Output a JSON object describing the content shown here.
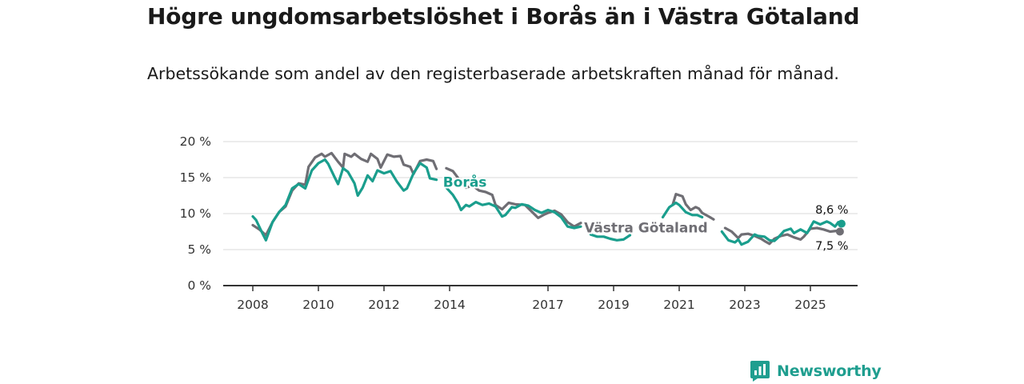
{
  "title": "Högre ungdomsarbetslöshet i Borås än i Västra Götaland",
  "subtitle": "Arbetssökande som andel av den registerbaserade arbetskraften månad för månad.",
  "brand": {
    "name": "Newsworthy",
    "color": "#1f9e8f"
  },
  "chart_data": {
    "type": "line",
    "title": "Högre ungdomsarbetslöshet i Borås än i Västra Götaland",
    "subtitle": "Arbetssökande som andel av den registerbaserade arbetskraften månad för månad.",
    "xlabel": "",
    "ylabel": "",
    "xlim": [
      2007.8,
      2026.5
    ],
    "ylim": [
      0,
      20
    ],
    "yticks": [
      0,
      5,
      10,
      15,
      20
    ],
    "ytick_labels": [
      "0 %",
      "5 %",
      "10 %",
      "15 %",
      "20 %"
    ],
    "xticks": [
      2008,
      2010,
      2012,
      2014,
      2017,
      2019,
      2021,
      2023,
      2025
    ],
    "xtick_labels": [
      "2008",
      "2010",
      "2012",
      "2014",
      "2017",
      "2019",
      "2021",
      "2023",
      "2025"
    ],
    "grid": true,
    "series": [
      {
        "name": "Västra Götaland",
        "label": "Västra Götaland",
        "color": "#6f6e74",
        "segments": [
          [
            [
              2008.0,
              8.4
            ],
            [
              2008.2,
              7.8
            ],
            [
              2008.4,
              7.0
            ],
            [
              2008.6,
              8.8
            ],
            [
              2008.8,
              10.2
            ],
            [
              2009.0,
              11.0
            ],
            [
              2009.2,
              13.2
            ],
            [
              2009.4,
              14.2
            ],
            [
              2009.6,
              14.0
            ],
            [
              2009.7,
              16.5
            ],
            [
              2009.9,
              17.8
            ],
            [
              2010.1,
              18.3
            ],
            [
              2010.2,
              17.9
            ],
            [
              2010.4,
              18.4
            ],
            [
              2010.6,
              17.2
            ],
            [
              2010.75,
              16.4
            ],
            [
              2010.8,
              18.3
            ],
            [
              2011.0,
              17.9
            ],
            [
              2011.1,
              18.3
            ],
            [
              2011.3,
              17.6
            ],
            [
              2011.5,
              17.2
            ],
            [
              2011.6,
              18.3
            ],
            [
              2011.8,
              17.6
            ],
            [
              2011.9,
              16.4
            ],
            [
              2012.1,
              18.2
            ],
            [
              2012.3,
              17.9
            ],
            [
              2012.5,
              18.0
            ],
            [
              2012.6,
              16.8
            ],
            [
              2012.8,
              16.5
            ],
            [
              2012.9,
              15.5
            ],
            [
              2013.1,
              17.3
            ],
            [
              2013.3,
              17.5
            ],
            [
              2013.5,
              17.3
            ],
            [
              2013.6,
              16.2
            ]
          ],
          [
            [
              2013.9,
              16.3
            ],
            [
              2014.1,
              15.9
            ],
            [
              2014.3,
              14.7
            ],
            [
              2014.5,
              13.6
            ],
            [
              2014.7,
              13.9
            ],
            [
              2014.9,
              13.2
            ],
            [
              2015.1,
              13.0
            ],
            [
              2015.3,
              12.6
            ],
            [
              2015.4,
              11.2
            ],
            [
              2015.6,
              10.6
            ],
            [
              2015.8,
              11.5
            ],
            [
              2016.0,
              11.3
            ],
            [
              2016.3,
              11.2
            ],
            [
              2016.5,
              10.3
            ],
            [
              2016.7,
              9.4
            ],
            [
              2016.9,
              9.9
            ],
            [
              2017.0,
              10.1
            ],
            [
              2017.2,
              10.4
            ],
            [
              2017.4,
              9.9
            ],
            [
              2017.6,
              8.8
            ],
            [
              2017.8,
              8.2
            ],
            [
              2018.0,
              8.7
            ]
          ],
          [
            [
              2020.8,
              11.2
            ],
            [
              2020.9,
              12.7
            ],
            [
              2021.1,
              12.4
            ],
            [
              2021.2,
              11.3
            ],
            [
              2021.35,
              10.5
            ],
            [
              2021.5,
              10.9
            ],
            [
              2021.6,
              10.7
            ],
            [
              2021.7,
              10.1
            ],
            [
              2021.9,
              9.6
            ],
            [
              2022.05,
              9.2
            ]
          ],
          [
            [
              2022.4,
              8.0
            ],
            [
              2022.6,
              7.5
            ],
            [
              2022.8,
              6.6
            ],
            [
              2022.9,
              7.1
            ],
            [
              2023.1,
              7.2
            ],
            [
              2023.3,
              6.9
            ],
            [
              2023.5,
              6.5
            ],
            [
              2023.6,
              6.2
            ],
            [
              2023.75,
              5.8
            ],
            [
              2023.9,
              6.5
            ],
            [
              2024.1,
              6.9
            ],
            [
              2024.3,
              7.1
            ],
            [
              2024.5,
              6.7
            ],
            [
              2024.7,
              6.4
            ],
            [
              2024.8,
              6.8
            ],
            [
              2025.0,
              7.9
            ],
            [
              2025.2,
              8.0
            ],
            [
              2025.4,
              7.8
            ],
            [
              2025.6,
              7.5
            ],
            [
              2025.8,
              7.6
            ],
            [
              2025.9,
              7.5
            ]
          ]
        ]
      },
      {
        "name": "Borås",
        "label": "Borås",
        "color": "#1a9e8d",
        "segments": [
          [
            [
              2008.0,
              9.6
            ],
            [
              2008.1,
              9.1
            ],
            [
              2008.3,
              7.2
            ],
            [
              2008.4,
              6.3
            ],
            [
              2008.6,
              8.8
            ],
            [
              2008.8,
              10.2
            ],
            [
              2009.0,
              11.2
            ],
            [
              2009.2,
              13.5
            ],
            [
              2009.4,
              14.1
            ],
            [
              2009.6,
              13.5
            ],
            [
              2009.8,
              16.0
            ],
            [
              2010.0,
              17.0
            ],
            [
              2010.2,
              17.5
            ],
            [
              2010.3,
              16.9
            ],
            [
              2010.5,
              15.0
            ],
            [
              2010.6,
              14.1
            ],
            [
              2010.75,
              16.3
            ],
            [
              2010.9,
              15.8
            ],
            [
              2011.1,
              14.2
            ],
            [
              2011.2,
              12.5
            ],
            [
              2011.35,
              13.6
            ],
            [
              2011.5,
              15.3
            ],
            [
              2011.65,
              14.5
            ],
            [
              2011.8,
              16.0
            ],
            [
              2012.0,
              15.6
            ],
            [
              2012.2,
              15.9
            ],
            [
              2012.4,
              14.4
            ],
            [
              2012.6,
              13.2
            ],
            [
              2012.7,
              13.5
            ],
            [
              2012.9,
              15.6
            ],
            [
              2013.1,
              17.0
            ],
            [
              2013.3,
              16.4
            ],
            [
              2013.4,
              14.9
            ],
            [
              2013.6,
              14.7
            ]
          ],
          [
            [
              2013.9,
              13.6
            ],
            [
              2014.1,
              12.6
            ],
            [
              2014.25,
              11.5
            ],
            [
              2014.35,
              10.5
            ],
            [
              2014.5,
              11.2
            ],
            [
              2014.6,
              11.0
            ],
            [
              2014.8,
              11.6
            ],
            [
              2015.0,
              11.2
            ],
            [
              2015.2,
              11.4
            ],
            [
              2015.4,
              11.0
            ],
            [
              2015.6,
              9.6
            ],
            [
              2015.7,
              9.8
            ],
            [
              2015.9,
              10.9
            ],
            [
              2016.0,
              10.8
            ],
            [
              2016.2,
              11.3
            ],
            [
              2016.4,
              11.1
            ],
            [
              2016.6,
              10.5
            ],
            [
              2016.8,
              10.1
            ],
            [
              2017.0,
              10.5
            ],
            [
              2017.2,
              10.2
            ],
            [
              2017.4,
              9.5
            ],
            [
              2017.6,
              8.2
            ],
            [
              2017.8,
              8.0
            ],
            [
              2018.0,
              8.2
            ]
          ],
          [
            [
              2018.3,
              7.1
            ],
            [
              2018.5,
              6.8
            ],
            [
              2018.7,
              6.8
            ],
            [
              2018.9,
              6.5
            ],
            [
              2019.1,
              6.3
            ],
            [
              2019.3,
              6.4
            ],
            [
              2019.5,
              7.0
            ]
          ],
          [
            [
              2020.5,
              9.5
            ],
            [
              2020.7,
              10.9
            ],
            [
              2020.9,
              11.5
            ],
            [
              2021.0,
              11.2
            ],
            [
              2021.2,
              10.2
            ],
            [
              2021.4,
              9.8
            ],
            [
              2021.55,
              9.8
            ],
            [
              2021.7,
              9.5
            ]
          ],
          [
            [
              2022.3,
              7.5
            ],
            [
              2022.5,
              6.3
            ],
            [
              2022.7,
              6.0
            ],
            [
              2022.8,
              6.4
            ],
            [
              2022.9,
              5.7
            ],
            [
              2023.1,
              6.1
            ],
            [
              2023.3,
              7.1
            ],
            [
              2023.4,
              6.9
            ],
            [
              2023.6,
              6.8
            ],
            [
              2023.75,
              6.3
            ],
            [
              2023.9,
              6.2
            ],
            [
              2024.0,
              6.6
            ],
            [
              2024.2,
              7.6
            ],
            [
              2024.4,
              7.9
            ],
            [
              2024.5,
              7.3
            ],
            [
              2024.7,
              7.8
            ],
            [
              2024.9,
              7.3
            ],
            [
              2025.1,
              8.9
            ],
            [
              2025.3,
              8.5
            ],
            [
              2025.5,
              8.9
            ],
            [
              2025.6,
              8.7
            ],
            [
              2025.75,
              8.2
            ],
            [
              2025.85,
              8.8
            ],
            [
              2025.95,
              8.6
            ]
          ]
        ]
      }
    ],
    "annotations": [
      {
        "series": "Borås",
        "text": "8,6 %",
        "value": 8.6
      },
      {
        "series": "Västra Götaland",
        "text": "7,5 %",
        "value": 7.5
      }
    ]
  }
}
